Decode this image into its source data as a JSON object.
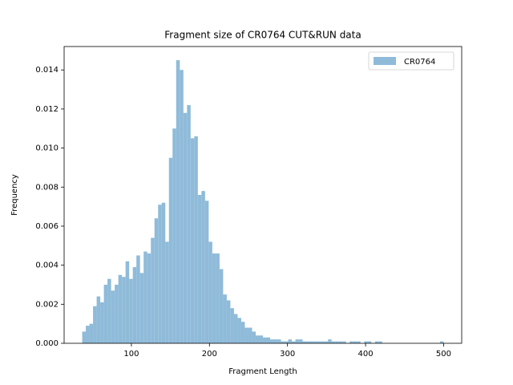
{
  "chart_data": {
    "type": "histogram",
    "title": "Fragment size of CR0764 CUT&RUN data",
    "x_label": "Fragment Length",
    "y_label": "Frequency",
    "legend_loc": "upper right",
    "bins": [
      37.0,
      41.63,
      46.26,
      50.89,
      55.52,
      60.15,
      64.78,
      69.41,
      74.04,
      78.67,
      83.3,
      87.93,
      92.56,
      97.19,
      101.82,
      106.45,
      111.08,
      115.71,
      120.34,
      124.97,
      129.6,
      134.23,
      138.86,
      143.49,
      148.12,
      152.75,
      157.38,
      162.01,
      166.64,
      171.27,
      175.9,
      180.53,
      185.16,
      189.79,
      194.42,
      199.05,
      203.68,
      208.31,
      212.94,
      217.57,
      222.2,
      226.83,
      231.46,
      236.09,
      240.72,
      245.35,
      249.98,
      254.61,
      259.24,
      263.87,
      268.5,
      273.13,
      277.76,
      282.39,
      287.02,
      291.65,
      296.28,
      300.91,
      305.54,
      310.17,
      314.8,
      319.43,
      324.06,
      328.69,
      333.32,
      337.95,
      342.58,
      347.21,
      351.84,
      356.47,
      361.1,
      365.73,
      370.36,
      374.99,
      379.62,
      384.25,
      388.88,
      393.51,
      398.14,
      402.77,
      407.4,
      412.03,
      416.66,
      421.29,
      425.92,
      430.55,
      435.18,
      439.81,
      444.44,
      449.07,
      453.7,
      458.33,
      462.96,
      467.59,
      472.22,
      476.85,
      481.48,
      486.11,
      490.74,
      495.37,
      500.0
    ],
    "series": [
      {
        "name": "CR0764",
        "color": "#8fbbd9",
        "values": [
          0.0006,
          0.0009,
          0.001,
          0.0019,
          0.0024,
          0.0021,
          0.003,
          0.0033,
          0.0027,
          0.003,
          0.0035,
          0.0034,
          0.0042,
          0.0033,
          0.0039,
          0.0045,
          0.0036,
          0.0047,
          0.0046,
          0.0054,
          0.0064,
          0.0071,
          0.0072,
          0.0052,
          0.0095,
          0.011,
          0.0145,
          0.014,
          0.0118,
          0.0122,
          0.0105,
          0.0106,
          0.0076,
          0.0078,
          0.0073,
          0.0052,
          0.0046,
          0.0046,
          0.0038,
          0.0025,
          0.0022,
          0.0018,
          0.0015,
          0.0013,
          0.0011,
          0.0008,
          0.0008,
          0.0006,
          0.0004,
          0.0004,
          0.0003,
          0.0003,
          0.0002,
          0.0002,
          0.0002,
          0.0001,
          0.0001,
          0.0002,
          0.0001,
          0.0002,
          0.0002,
          0.0001,
          0.0001,
          0.0001,
          0.0001,
          0.0001,
          0.0001,
          0.0001,
          0.0002,
          0.0001,
          0.0001,
          0.0001,
          0.0001,
          0,
          0.0001,
          0.0001,
          0.0001,
          0,
          0.0001,
          0.0001,
          0,
          0.0001,
          0.0001,
          0,
          0,
          0,
          0,
          0,
          0,
          0,
          0,
          0,
          0,
          0,
          0,
          0,
          0,
          0,
          0,
          0.0001
        ]
      }
    ],
    "xlim": [
      13.85,
      523.15
    ],
    "ylim": [
      0,
      0.0152
    ],
    "xticks": [
      100,
      200,
      300,
      400,
      500
    ],
    "yticks": [
      {
        "value": 0,
        "label": "0.000"
      },
      {
        "value": 0.002,
        "label": "0.002"
      },
      {
        "value": 0.004,
        "label": "0.004"
      },
      {
        "value": 0.006,
        "label": "0.006"
      },
      {
        "value": 0.008,
        "label": "0.008"
      },
      {
        "value": 0.01,
        "label": "0.010"
      },
      {
        "value": 0.012,
        "label": "0.012"
      },
      {
        "value": 0.014,
        "label": "0.014"
      }
    ]
  }
}
